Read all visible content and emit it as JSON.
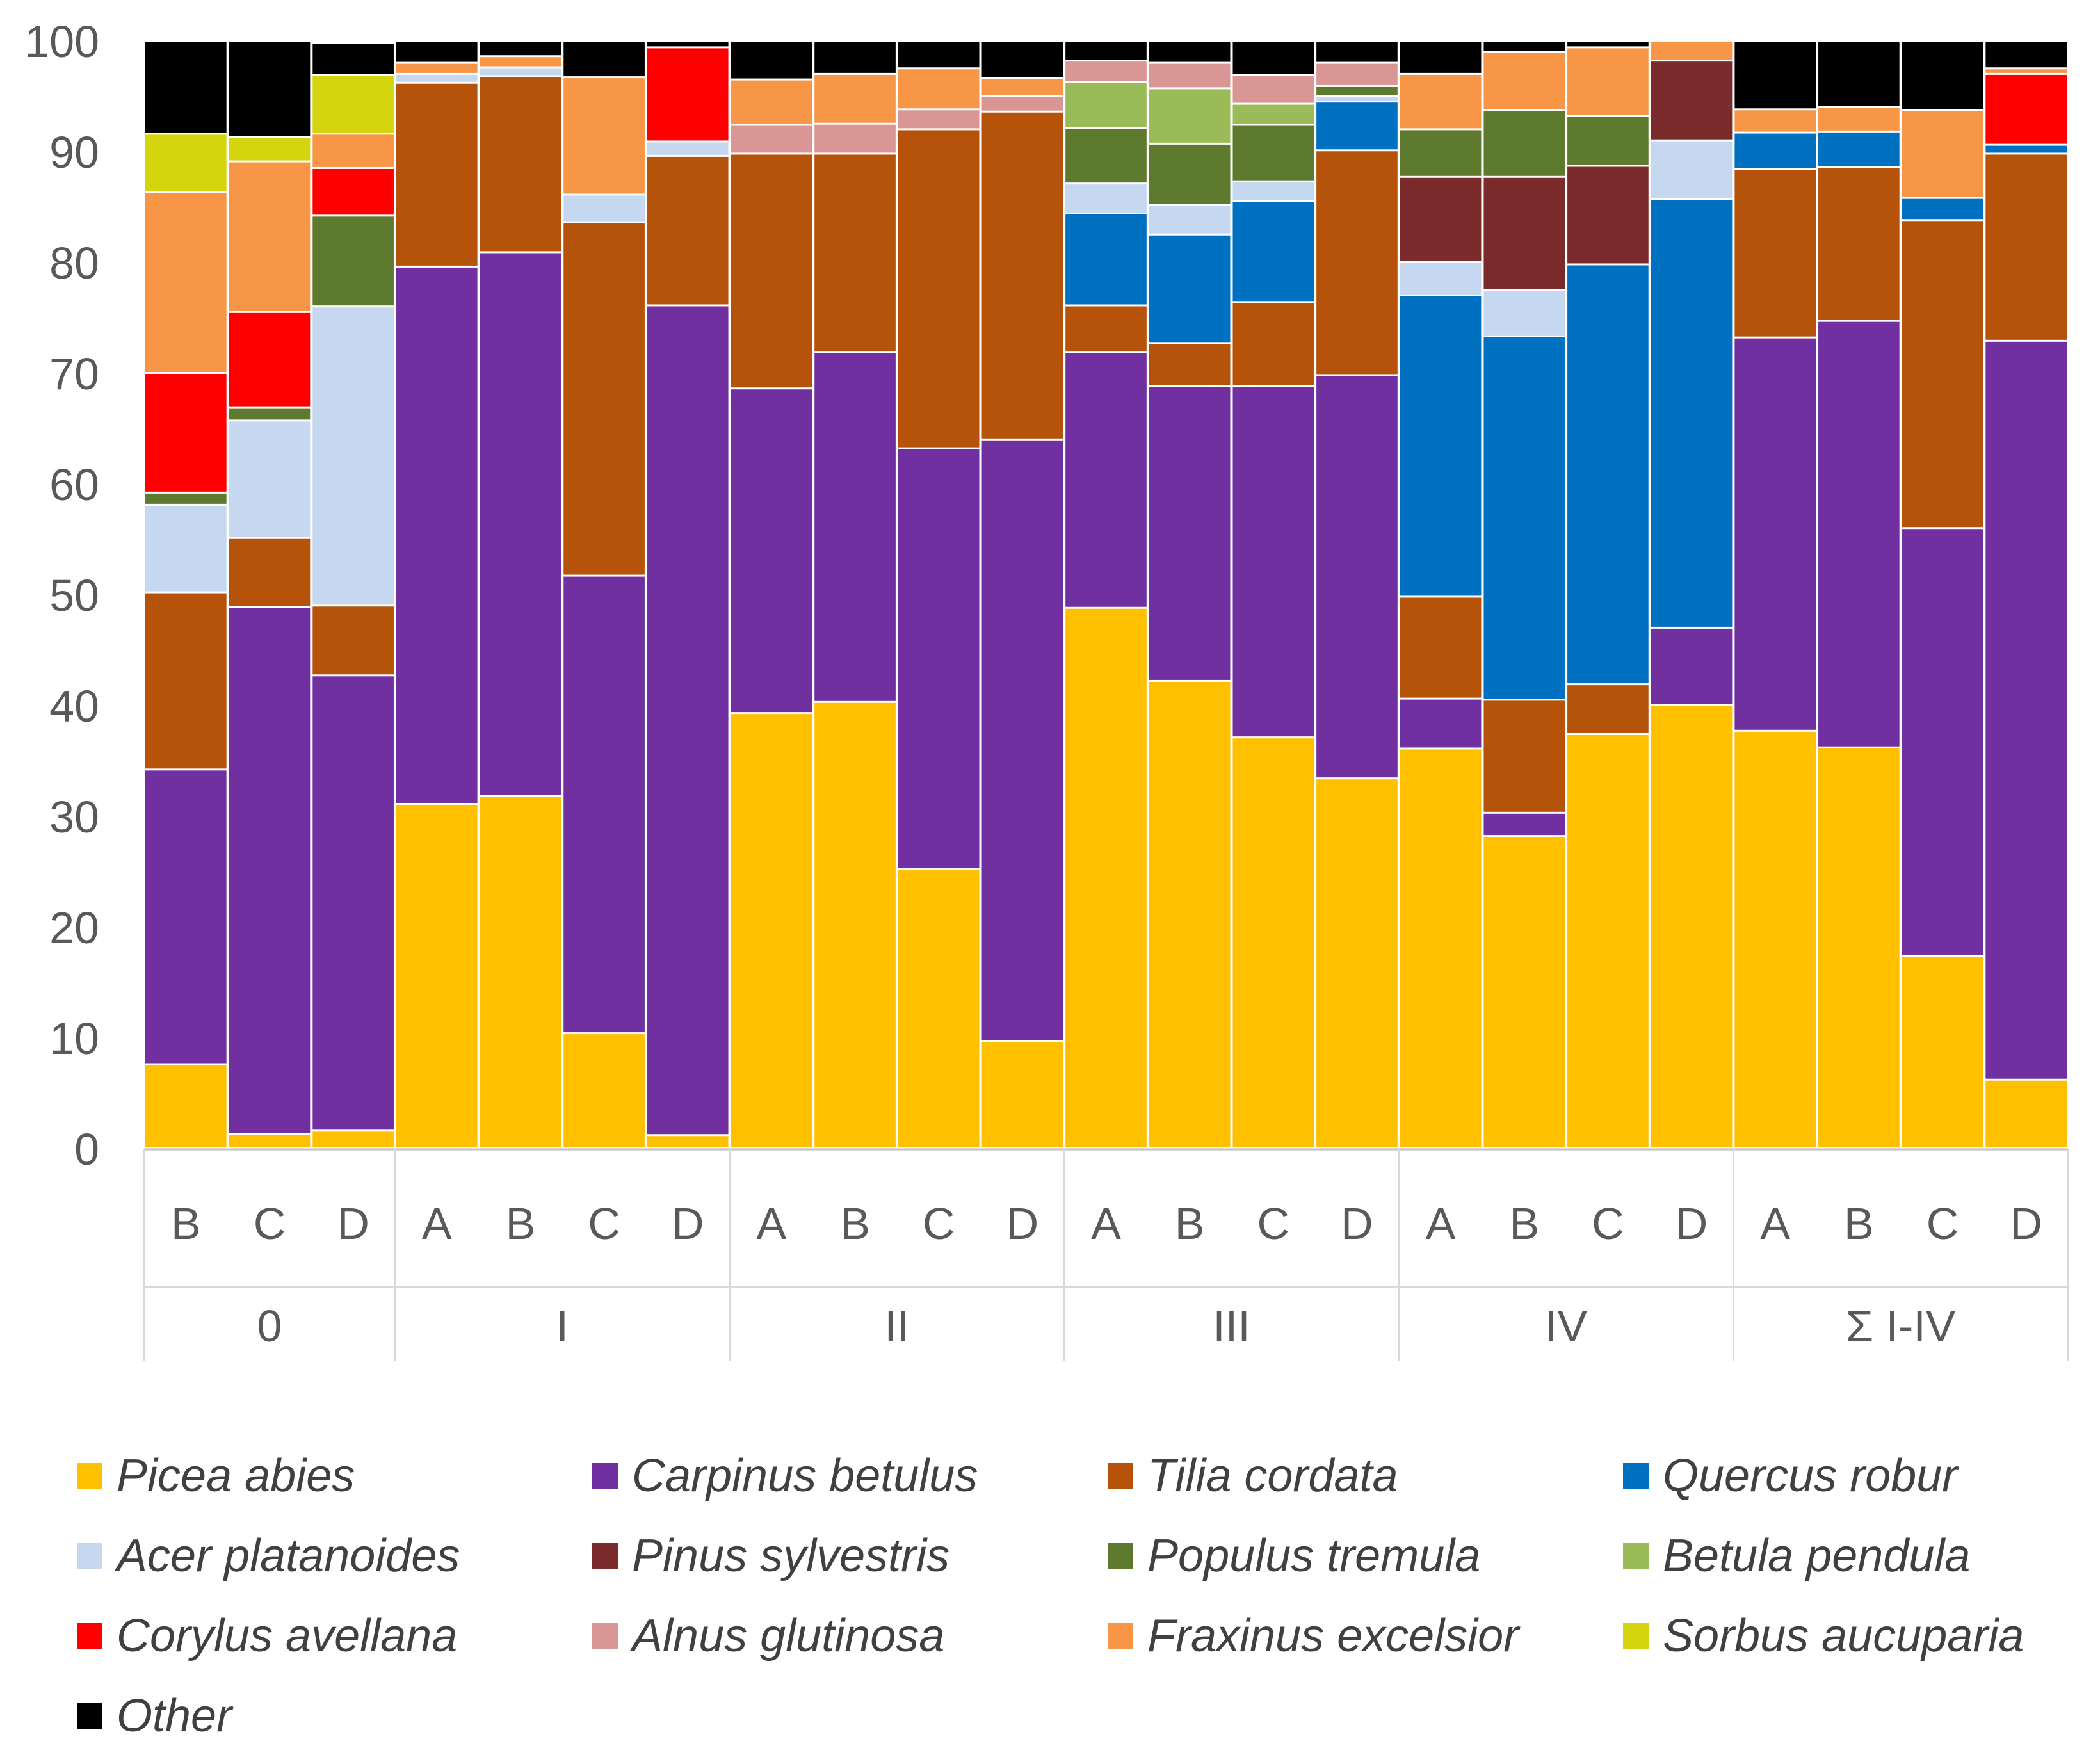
{
  "chart_data": {
    "type": "bar",
    "stacked": true,
    "ylim": [
      0,
      100
    ],
    "yticks": [
      0,
      10,
      20,
      30,
      40,
      50,
      60,
      70,
      80,
      90,
      100
    ],
    "groups": [
      {
        "label": "0",
        "bars": [
          {
            "label": "B",
            "values": [
              7.6,
              26.6,
              16.0,
              0,
              7.9,
              0,
              1.1,
              0,
              10.8,
              0,
              16.3,
              5.3,
              8.4
            ]
          },
          {
            "label": "C",
            "values": [
              1.3,
              47.6,
              6.2,
              0,
              10.6,
              0,
              1.2,
              0,
              8.6,
              0,
              13.6,
              2.2,
              8.7
            ]
          },
          {
            "label": "D",
            "values": [
              1.6,
              41.1,
              6.3,
              0,
              27.0,
              0,
              8.2,
              0,
              4.3,
              0,
              3.1,
              5.3,
              2.9
            ]
          }
        ]
      },
      {
        "label": "I",
        "bars": [
          {
            "label": "A",
            "values": [
              31.1,
              48.5,
              16.6,
              0,
              0.8,
              0,
              0,
              0,
              0,
              0,
              1.0,
              0,
              2.0
            ]
          },
          {
            "label": "B",
            "values": [
              31.8,
              49.1,
              15.9,
              0,
              0.8,
              0,
              0,
              0,
              0,
              0,
              1.0,
              0,
              1.4
            ]
          },
          {
            "label": "C",
            "values": [
              10.4,
              41.3,
              31.9,
              0,
              2.5,
              0,
              0,
              0,
              0,
              0,
              10.6,
              0,
              3.3
            ]
          },
          {
            "label": "D",
            "values": [
              1.2,
              74.9,
              13.5,
              0,
              1.3,
              0,
              0,
              0,
              8.5,
              0,
              0,
              0,
              0.6
            ]
          }
        ]
      },
      {
        "label": "II",
        "bars": [
          {
            "label": "A",
            "values": [
              39.3,
              29.3,
              21.2,
              0,
              0,
              0,
              0,
              0,
              0,
              2.6,
              4.1,
              0,
              3.5
            ]
          },
          {
            "label": "B",
            "values": [
              40.3,
              31.6,
              17.9,
              0,
              0,
              0,
              0,
              0,
              0,
              2.7,
              4.5,
              0,
              3.0
            ]
          },
          {
            "label": "C",
            "values": [
              25.2,
              38.0,
              28.8,
              0,
              0,
              0,
              0,
              0,
              0,
              1.8,
              3.7,
              0,
              2.5
            ]
          },
          {
            "label": "D",
            "values": [
              9.7,
              54.3,
              29.6,
              0,
              0,
              0,
              0,
              0,
              0,
              1.4,
              1.6,
              0,
              3.4
            ]
          }
        ]
      },
      {
        "label": "III",
        "bars": [
          {
            "label": "A",
            "values": [
              48.8,
              23.1,
              4.2,
              8.3,
              2.7,
              0,
              5.0,
              4.2,
              0,
              1.9,
              0,
              0,
              1.8
            ]
          },
          {
            "label": "B",
            "values": [
              42.2,
              26.6,
              3.9,
              9.8,
              2.7,
              0,
              5.5,
              5.0,
              0,
              2.3,
              0,
              0,
              2.0
            ]
          },
          {
            "label": "C",
            "values": [
              37.1,
              31.7,
              7.6,
              9.1,
              1.8,
              0,
              5.1,
              1.9,
              0,
              2.6,
              0,
              0,
              3.1
            ]
          },
          {
            "label": "D",
            "values": [
              33.4,
              36.4,
              20.3,
              4.4,
              0.5,
              0,
              0.9,
              0,
              0,
              2.1,
              0,
              0,
              2.0
            ]
          }
        ]
      },
      {
        "label": "IV",
        "bars": [
          {
            "label": "A",
            "values": [
              36.1,
              4.5,
              9.2,
              27.2,
              3.0,
              7.7,
              4.3,
              0,
              0,
              0,
              5.0,
              0,
              3.0
            ]
          },
          {
            "label": "B",
            "values": [
              28.2,
              2.1,
              10.2,
              32.8,
              4.2,
              10.2,
              6.0,
              0,
              0,
              0,
              5.3,
              0,
              1.0
            ]
          },
          {
            "label": "C",
            "values": [
              37.4,
              0,
              4.5,
              37.9,
              0,
              8.9,
              4.5,
              0,
              0,
              0,
              6.2,
              0,
              0.6
            ]
          },
          {
            "label": "D",
            "values": [
              40.0,
              7.0,
              0,
              38.7,
              5.3,
              7.2,
              0,
              0,
              0,
              0,
              1.8,
              0,
              0
            ]
          }
        ]
      },
      {
        "label": "Σ I-IV",
        "bars": [
          {
            "label": "A",
            "values": [
              37.7,
              35.5,
              15.2,
              3.3,
              0,
              0,
              0,
              0,
              0,
              0,
              2.1,
              0,
              6.2
            ]
          },
          {
            "label": "B",
            "values": [
              36.2,
              38.5,
              13.9,
              3.2,
              0,
              0,
              0,
              0,
              0,
              0,
              2.2,
              0,
              6.0
            ]
          },
          {
            "label": "C",
            "values": [
              17.4,
              38.6,
              27.8,
              2.0,
              0,
              0,
              0,
              0,
              0,
              0,
              7.9,
              0,
              6.3
            ]
          },
          {
            "label": "D",
            "values": [
              6.2,
              66.7,
              16.9,
              0.8,
              0,
              0,
              0,
              0,
              6.4,
              0,
              0.5,
              0,
              2.5
            ]
          }
        ]
      }
    ],
    "series": [
      {
        "name": "Picea abies",
        "color": "#FFC000"
      },
      {
        "name": "Carpinus betulus",
        "color": "#7030A0"
      },
      {
        "name": "Tilia cordata",
        "color": "#B45309"
      },
      {
        "name": "Quercus robur",
        "color": "#0070C0"
      },
      {
        "name": "Acer platanoides",
        "color": "#C5D8EF"
      },
      {
        "name": "Pinus sylvestris",
        "color": "#7B2B2B"
      },
      {
        "name": "Populus tremula",
        "color": "#5E7A2E"
      },
      {
        "name": "Betula pendula",
        "color": "#9BBB59"
      },
      {
        "name": "Corylus avellana",
        "color": "#FF0000"
      },
      {
        "name": "Alnus glutinosa",
        "color": "#DA9694"
      },
      {
        "name": "Fraxinus excelsior",
        "color": "#F79646"
      },
      {
        "name": "Sorbus aucuparia",
        "color": "#D4D40F"
      },
      {
        "name": "Other",
        "color": "#000000"
      }
    ]
  }
}
